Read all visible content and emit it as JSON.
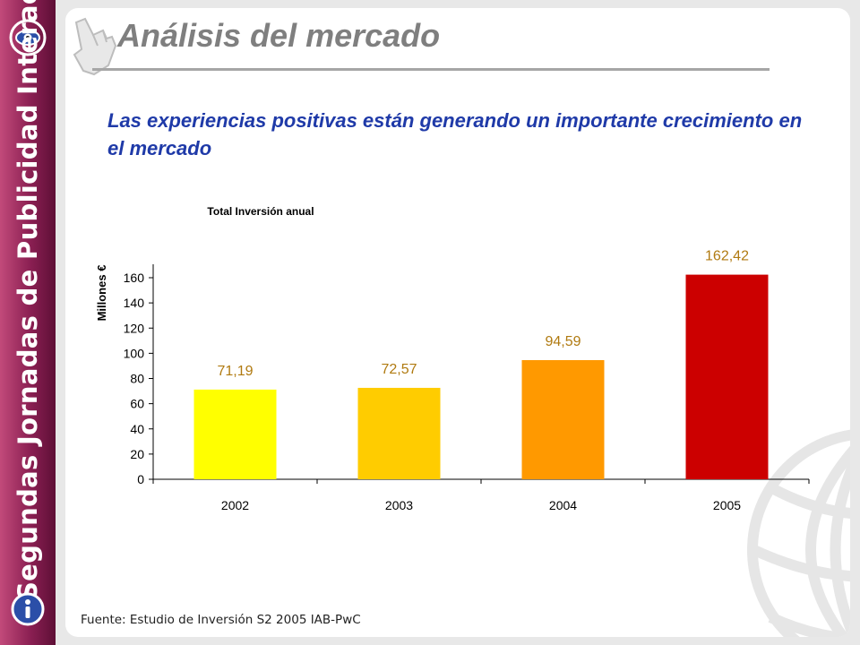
{
  "sidebar": {
    "title": "Segundas Jornadas de Publicidad Interactiva",
    "top_logo_icon": "eye-logo-icon",
    "bottom_logo_icon": "info-badge-icon"
  },
  "header": {
    "title": "Análisis del mercado",
    "pointer_icon": "pointing-hand-icon"
  },
  "subtitle": "Las experiencias positivas están generando un importante crecimiento en el mercado",
  "footer": {
    "source": "Fuente: Estudio de Inversión S2 2005 IAB-PwC"
  },
  "decor": {
    "globe_icon": "globe-watermark-icon"
  },
  "colors": {
    "sidebar": "#8a1f52",
    "title": "#7f7f7f",
    "subtitle": "#1f3aa8",
    "label": "#b07a10"
  },
  "chart_data": {
    "type": "bar",
    "title": "Total Inversión anual",
    "xlabel": "",
    "ylabel": "Millones €",
    "categories": [
      "2002",
      "2003",
      "2004",
      "2005"
    ],
    "values": [
      71.19,
      72.57,
      94.59,
      162.42
    ],
    "value_labels": [
      "71,19",
      "72,57",
      "94,59",
      "162,42"
    ],
    "bar_colors": [
      "#ffff00",
      "#ffcc00",
      "#ff9900",
      "#cc0000"
    ],
    "ylim": [
      0,
      160
    ],
    "yticks": [
      0,
      20,
      40,
      60,
      80,
      100,
      120,
      140,
      160
    ],
    "grid": false,
    "legend": "none"
  }
}
